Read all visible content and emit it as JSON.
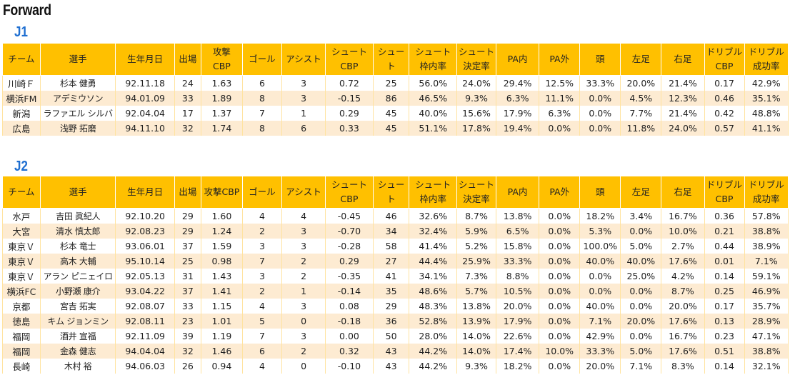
{
  "page": {
    "title": "Forward"
  },
  "j1": {
    "label": "J1",
    "header": [
      "チーム",
      "選手",
      "生年月日",
      "出場",
      "攻撃\nCBP",
      "ゴール",
      "アシスト",
      "シュート\nCBP",
      "シュート",
      "シュート\n枠内率",
      "シュート\n決定率",
      "PA内",
      "PA外",
      "頭",
      "左足",
      "右足",
      "ドリブル\nCBP",
      "ドリブル\n成功率"
    ],
    "rows": [
      [
        "川崎Ｆ",
        "杉本 健勇",
        "92.11.18",
        "24",
        "1.63",
        "6",
        "3",
        "0.72",
        "25",
        "56.0%",
        "24.0%",
        "29.4%",
        "12.5%",
        "33.3%",
        "20.0%",
        "21.4%",
        "0.17",
        "42.9%"
      ],
      [
        "横浜FM",
        "アデミウソン",
        "94.01.09",
        "33",
        "1.89",
        "8",
        "3",
        "-0.15",
        "86",
        "46.5%",
        "9.3%",
        "6.3%",
        "11.1%",
        "0.0%",
        "4.5%",
        "12.3%",
        "0.46",
        "35.1%"
      ],
      [
        "新潟",
        "ラファエル シルバ",
        "92.04.04",
        "17",
        "1.37",
        "7",
        "1",
        "0.29",
        "45",
        "40.0%",
        "15.6%",
        "17.9%",
        "6.3%",
        "0.0%",
        "7.7%",
        "21.4%",
        "0.42",
        "48.8%"
      ],
      [
        "広島",
        "浅野 拓磨",
        "94.11.10",
        "32",
        "1.74",
        "8",
        "6",
        "0.33",
        "45",
        "51.1%",
        "17.8%",
        "19.4%",
        "0.0%",
        "0.0%",
        "11.8%",
        "24.0%",
        "0.57",
        "41.1%"
      ]
    ]
  },
  "j2": {
    "label": "J2",
    "header": [
      "チーム",
      "選手",
      "生年月日",
      "出場",
      "攻撃CBP",
      "ゴール",
      "アシスト",
      "シュート\nCBP",
      "シュート",
      "シュート\n枠内率",
      "シュート\n決定率",
      "PA内",
      "PA外",
      "頭",
      "左足",
      "右足",
      "ドリブル\nCBP",
      "ドリブル\n成功率"
    ],
    "rows": [
      [
        "水戸",
        "吉田 眞紀人",
        "92.10.20",
        "29",
        "1.60",
        "4",
        "4",
        "-0.45",
        "46",
        "32.6%",
        "8.7%",
        "13.8%",
        "0.0%",
        "18.2%",
        "3.4%",
        "16.7%",
        "0.36",
        "57.8%"
      ],
      [
        "大宮",
        "清水 慎太郎",
        "92.08.23",
        "29",
        "1.24",
        "2",
        "3",
        "-0.70",
        "34",
        "32.4%",
        "5.9%",
        "6.5%",
        "0.0%",
        "5.3%",
        "0.0%",
        "10.0%",
        "0.21",
        "38.8%"
      ],
      [
        "東京Ｖ",
        "杉本 竜士",
        "93.06.01",
        "37",
        "1.59",
        "3",
        "3",
        "-0.28",
        "58",
        "41.4%",
        "5.2%",
        "15.8%",
        "0.0%",
        "100.0%",
        "5.0%",
        "2.7%",
        "0.44",
        "38.9%"
      ],
      [
        "東京Ｖ",
        "高木 大輔",
        "95.10.14",
        "25",
        "0.98",
        "7",
        "2",
        "0.29",
        "27",
        "44.4%",
        "25.9%",
        "33.3%",
        "0.0%",
        "40.0%",
        "40.0%",
        "17.6%",
        "0.01",
        "7.1%"
      ],
      [
        "東京Ｖ",
        "アラン ピニェイロ",
        "92.05.13",
        "31",
        "1.43",
        "3",
        "2",
        "-0.35",
        "41",
        "34.1%",
        "7.3%",
        "8.8%",
        "0.0%",
        "0.0%",
        "25.0%",
        "4.2%",
        "0.14",
        "59.1%"
      ],
      [
        "横浜FC",
        "小野瀬 康介",
        "93.04.22",
        "37",
        "1.41",
        "2",
        "1",
        "-0.14",
        "35",
        "48.6%",
        "5.7%",
        "10.5%",
        "0.0%",
        "0.0%",
        "0.0%",
        "8.7%",
        "0.25",
        "46.9%"
      ],
      [
        "京都",
        "宮吉 拓実",
        "92.08.07",
        "33",
        "1.15",
        "4",
        "3",
        "0.08",
        "29",
        "48.3%",
        "13.8%",
        "20.0%",
        "0.0%",
        "40.0%",
        "0.0%",
        "20.0%",
        "0.17",
        "35.7%"
      ],
      [
        "徳島",
        "キム ジョンミン",
        "92.08.11",
        "23",
        "1.01",
        "5",
        "0",
        "-0.18",
        "36",
        "52.8%",
        "13.9%",
        "17.9%",
        "0.0%",
        "7.1%",
        "20.0%",
        "17.6%",
        "0.13",
        "28.9%"
      ],
      [
        "福岡",
        "酒井 宣福",
        "92.11.09",
        "39",
        "1.19",
        "7",
        "3",
        "0.00",
        "50",
        "28.0%",
        "14.0%",
        "22.6%",
        "0.0%",
        "42.9%",
        "0.0%",
        "16.7%",
        "0.23",
        "47.1%"
      ],
      [
        "福岡",
        "金森 健志",
        "94.04.04",
        "32",
        "1.46",
        "6",
        "2",
        "0.32",
        "43",
        "44.2%",
        "14.0%",
        "17.4%",
        "10.0%",
        "33.3%",
        "5.0%",
        "17.6%",
        "0.51",
        "38.8%"
      ],
      [
        "長崎",
        "木村 裕",
        "94.06.03",
        "26",
        "0.94",
        "4",
        "0",
        "-0.10",
        "43",
        "44.2%",
        "9.3%",
        "18.2%",
        "0.0%",
        "20.0%",
        "7.1%",
        "8.3%",
        "0.14",
        "32.1%"
      ]
    ]
  }
}
